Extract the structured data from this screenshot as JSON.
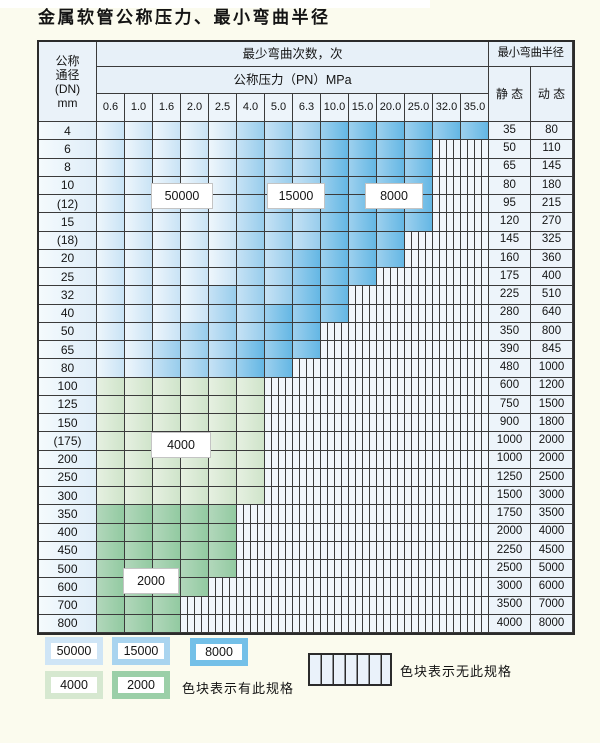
{
  "title": "金属软管公称压力、最小弯曲半径",
  "table": {
    "header": {
      "dn_lines": [
        "公称",
        "通径",
        "(DN)",
        "mm"
      ],
      "bend_cycles_label": "最少弯曲次数，次",
      "pressure_label": "公称压力（PN）MPa",
      "pressures": [
        "0.6",
        "1.0",
        "1.6",
        "2.0",
        "2.5",
        "4.0",
        "5.0",
        "6.3",
        "10.0",
        "15.0",
        "20.0",
        "25.0",
        "32.0",
        "35.0"
      ],
      "radius_label": "最小弯曲半径",
      "static_label": "静 态",
      "dynamic_label": "动 态"
    },
    "zone_labels": [
      "50000",
      "15000",
      "8000",
      "4000",
      "2000"
    ],
    "rows": [
      {
        "dn": "4",
        "bands": [
          [
            "50000",
            5
          ],
          [
            "15000",
            3
          ],
          [
            "8000",
            6
          ]
        ],
        "static": "35",
        "dynamic": "80"
      },
      {
        "dn": "6",
        "bands": [
          [
            "50000",
            5
          ],
          [
            "15000",
            3
          ],
          [
            "8000",
            4
          ]
        ],
        "static": "50",
        "dynamic": "110"
      },
      {
        "dn": "8",
        "bands": [
          [
            "50000",
            5
          ],
          [
            "15000",
            3
          ],
          [
            "8000",
            4
          ]
        ],
        "static": "65",
        "dynamic": "145"
      },
      {
        "dn": "10",
        "bands": [
          [
            "50000",
            5
          ],
          [
            "15000",
            3
          ],
          [
            "8000",
            4
          ]
        ],
        "static": "80",
        "dynamic": "180"
      },
      {
        "dn": "(12)",
        "bands": [
          [
            "50000",
            5
          ],
          [
            "15000",
            3
          ],
          [
            "8000",
            4
          ]
        ],
        "static": "95",
        "dynamic": "215"
      },
      {
        "dn": "15",
        "bands": [
          [
            "50000",
            5
          ],
          [
            "15000",
            3
          ],
          [
            "8000",
            4
          ]
        ],
        "static": "120",
        "dynamic": "270"
      },
      {
        "dn": "(18)",
        "bands": [
          [
            "50000",
            5
          ],
          [
            "15000",
            3
          ],
          [
            "8000",
            3
          ]
        ],
        "static": "145",
        "dynamic": "325"
      },
      {
        "dn": "20",
        "bands": [
          [
            "50000",
            5
          ],
          [
            "15000",
            2
          ],
          [
            "8000",
            4
          ]
        ],
        "static": "160",
        "dynamic": "360"
      },
      {
        "dn": "25",
        "bands": [
          [
            "50000",
            5
          ],
          [
            "15000",
            2
          ],
          [
            "8000",
            3
          ]
        ],
        "static": "175",
        "dynamic": "400"
      },
      {
        "dn": "32",
        "bands": [
          [
            "50000",
            4
          ],
          [
            "15000",
            3
          ],
          [
            "8000",
            2
          ]
        ],
        "static": "225",
        "dynamic": "510"
      },
      {
        "dn": "40",
        "bands": [
          [
            "50000",
            4
          ],
          [
            "15000",
            2
          ],
          [
            "8000",
            3
          ]
        ],
        "static": "280",
        "dynamic": "640"
      },
      {
        "dn": "50",
        "bands": [
          [
            "50000",
            3
          ],
          [
            "15000",
            3
          ],
          [
            "8000",
            2
          ]
        ],
        "static": "350",
        "dynamic": "800"
      },
      {
        "dn": "65",
        "bands": [
          [
            "50000",
            2
          ],
          [
            "15000",
            3
          ],
          [
            "8000",
            3
          ]
        ],
        "static": "390",
        "dynamic": "845"
      },
      {
        "dn": "80",
        "bands": [
          [
            "50000",
            2
          ],
          [
            "15000",
            3
          ],
          [
            "8000",
            2
          ]
        ],
        "static": "480",
        "dynamic": "1000"
      },
      {
        "dn": "100",
        "bands": [
          [
            "4000",
            6
          ]
        ],
        "static": "600",
        "dynamic": "1200"
      },
      {
        "dn": "125",
        "bands": [
          [
            "4000",
            6
          ]
        ],
        "static": "750",
        "dynamic": "1500"
      },
      {
        "dn": "150",
        "bands": [
          [
            "4000",
            6
          ]
        ],
        "static": "900",
        "dynamic": "1800"
      },
      {
        "dn": "(175)",
        "bands": [
          [
            "4000",
            6
          ]
        ],
        "static": "1000",
        "dynamic": "2000"
      },
      {
        "dn": "200",
        "bands": [
          [
            "4000",
            6
          ]
        ],
        "static": "1000",
        "dynamic": "2000"
      },
      {
        "dn": "250",
        "bands": [
          [
            "4000",
            6
          ]
        ],
        "static": "1250",
        "dynamic": "2500"
      },
      {
        "dn": "300",
        "bands": [
          [
            "4000",
            6
          ]
        ],
        "static": "1500",
        "dynamic": "3000"
      },
      {
        "dn": "350",
        "bands": [
          [
            "2000",
            5
          ]
        ],
        "static": "1750",
        "dynamic": "3500"
      },
      {
        "dn": "400",
        "bands": [
          [
            "2000",
            5
          ]
        ],
        "static": "2000",
        "dynamic": "4000"
      },
      {
        "dn": "450",
        "bands": [
          [
            "2000",
            5
          ]
        ],
        "static": "2250",
        "dynamic": "4500"
      },
      {
        "dn": "500",
        "bands": [
          [
            "2000",
            5
          ]
        ],
        "static": "2500",
        "dynamic": "5000"
      },
      {
        "dn": "600",
        "bands": [
          [
            "2000",
            4
          ]
        ],
        "static": "3000",
        "dynamic": "6000"
      },
      {
        "dn": "700",
        "bands": [
          [
            "2000",
            3
          ]
        ],
        "static": "3500",
        "dynamic": "7000"
      },
      {
        "dn": "800",
        "bands": [
          [
            "2000",
            3
          ]
        ],
        "static": "4000",
        "dynamic": "8000"
      }
    ]
  },
  "legend": {
    "items": [
      {
        "label": "50000",
        "color": "#cfe5f6"
      },
      {
        "label": "15000",
        "color": "#a9d4ef"
      },
      {
        "label": "8000",
        "color": "#74c0e8"
      },
      {
        "label": "4000",
        "color": "#d6e8d0"
      },
      {
        "label": "2000",
        "color": "#9bcfa8"
      }
    ],
    "has_spec_text": "色块表示有此规格",
    "no_spec_text": "色块表示无此规格"
  },
  "colors": {
    "cycles_50000": "#cfe5f6",
    "cycles_15000": "#a9d4ef",
    "cycles_8000": "#74c0e8",
    "cycles_4000": "#d6e8d0",
    "cycles_2000": "#9bcfa8",
    "grid_line": "#3b3b3b",
    "page_background": "#fbfbee"
  }
}
